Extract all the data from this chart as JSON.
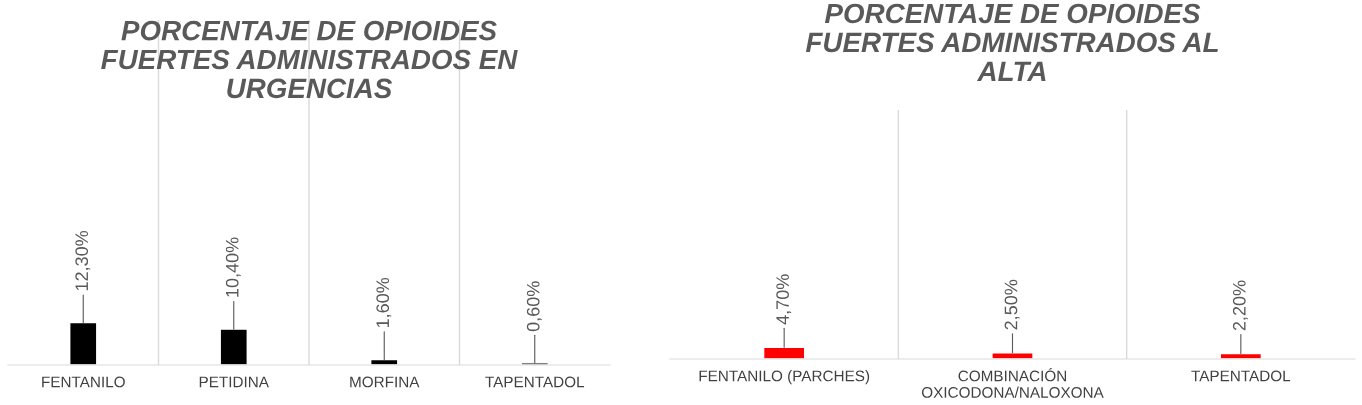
{
  "chart_data": [
    {
      "type": "bar",
      "title": "PORCENTAJE DE OPIOIDES\nFUERTES ADMINISTRADOS EN\nURGENCIAS",
      "categories": [
        "FENTANILO",
        "PETIDINA",
        "MORFINA",
        "TAPENTADOL"
      ],
      "color": "#000000",
      "values": [
        12.3,
        10.4,
        1.6,
        0.6
      ],
      "value_labels": [
        "12,30%",
        "10,40%",
        "1,60%",
        "0,60%"
      ],
      "ylim": [
        0,
        100
      ],
      "grid": "x"
    },
    {
      "type": "bar",
      "title": "PORCENTAJE DE OPIOIDES\nFUERTES ADMINISTRADOS AL\nALTA",
      "categories": [
        "FENTANILO (PARCHES)",
        "COMBINACIÓN\nOXICODONA/NALOXONA",
        "TAPENTADOL"
      ],
      "color": "#ff0000",
      "values": [
        4.7,
        2.5,
        2.2
      ],
      "value_labels": [
        "4,70%",
        "2,50%",
        "2,20%"
      ],
      "ylim": [
        0,
        100
      ],
      "grid": "x"
    }
  ]
}
